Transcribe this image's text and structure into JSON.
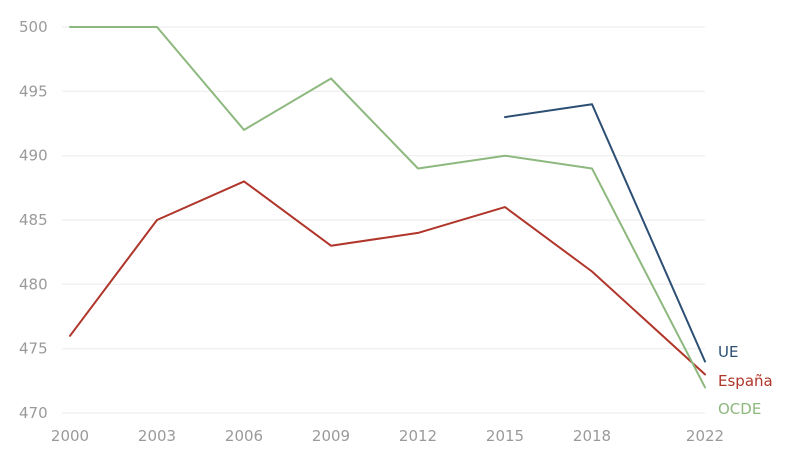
{
  "chart_data": {
    "type": "line",
    "title": "",
    "xlabel": "",
    "ylabel": "",
    "ylim": [
      470,
      500
    ],
    "xlim": [
      2000,
      2022
    ],
    "x_ticks": [
      "2000",
      "2003",
      "2006",
      "2009",
      "2012",
      "2015",
      "2018",
      "2022"
    ],
    "y_ticks": [
      "500",
      "495",
      "490",
      "485",
      "480",
      "475",
      "470"
    ],
    "grid": true,
    "legend": "inline labels at line ends (right)",
    "series": [
      {
        "name": "UE",
        "color": "#2c4f73",
        "points": [
          {
            "x": 2015,
            "y": 493
          },
          {
            "x": 2018,
            "y": 494
          },
          {
            "x": 2022,
            "y": 474
          }
        ]
      },
      {
        "name": "España",
        "color": "#b0352a",
        "points": [
          {
            "x": 2000,
            "y": 476
          },
          {
            "x": 2003,
            "y": 485
          },
          {
            "x": 2006,
            "y": 488
          },
          {
            "x": 2009,
            "y": 483
          },
          {
            "x": 2012,
            "y": 484
          },
          {
            "x": 2015,
            "y": 486
          },
          {
            "x": 2018,
            "y": 481
          },
          {
            "x": 2022,
            "y": 473
          }
        ]
      },
      {
        "name": "OCDE",
        "color": "#8db87e",
        "points": [
          {
            "x": 2000,
            "y": 500
          },
          {
            "x": 2003,
            "y": 500
          },
          {
            "x": 2006,
            "y": 492
          },
          {
            "x": 2009,
            "y": 496
          },
          {
            "x": 2012,
            "y": 489
          },
          {
            "x": 2015,
            "y": 490
          },
          {
            "x": 2018,
            "y": 489
          },
          {
            "x": 2022,
            "y": 472
          }
        ]
      }
    ]
  }
}
